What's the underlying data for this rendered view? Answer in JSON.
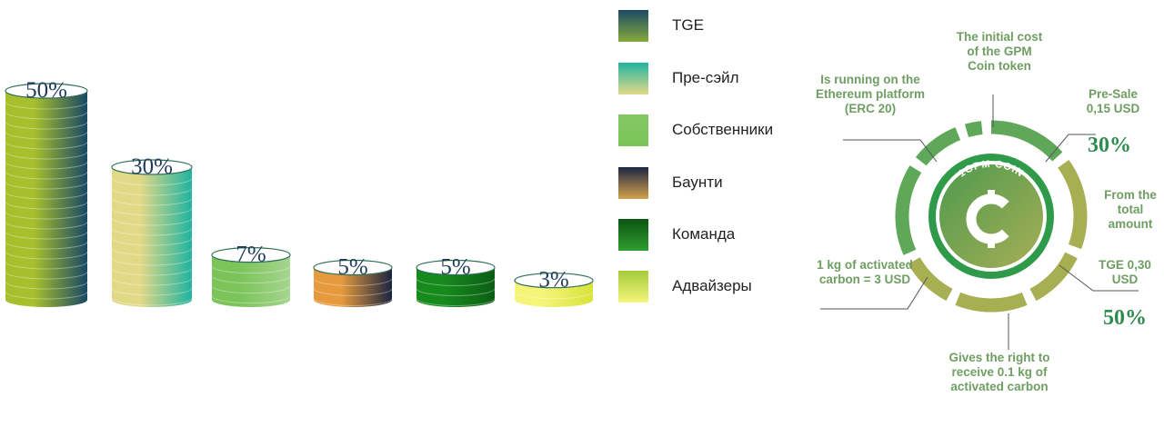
{
  "chart_data": {
    "type": "bar",
    "categories": [
      "TGE",
      "Пре-сэйл",
      "Собственники",
      "Баунти",
      "Команда",
      "Адвайзеры"
    ],
    "values": [
      50,
      30,
      7,
      5,
      5,
      3
    ],
    "labels": [
      "50%",
      "30%",
      "7%",
      "5%",
      "5%",
      "3%"
    ],
    "title": "",
    "xlabel": "",
    "ylabel": "",
    "legend": "right",
    "grid": false,
    "colors": [
      [
        "#a7bf2d",
        "#184865"
      ],
      [
        "#e2d987",
        "#1fb3a0"
      ],
      [
        "#7cc45a",
        "#a5d58e"
      ],
      [
        "#e69a3e",
        "#1a2440"
      ],
      [
        "#178a1e",
        "#0b5d14"
      ],
      [
        "#f5f57a",
        "#d8e33a"
      ]
    ]
  },
  "legend": {
    "items": [
      {
        "label": "TGE",
        "swatch_top": "#1c4a66",
        "swatch_bottom": "#86aa3a"
      },
      {
        "label": "Пре-сэйл",
        "swatch_top": "#1fb3a0",
        "swatch_bottom": "#e4d98a"
      },
      {
        "label": "Собственники",
        "swatch_top": "#84c763",
        "swatch_bottom": "#7cc45a"
      },
      {
        "label": "Баунти",
        "swatch_top": "#1b2641",
        "swatch_bottom": "#d6a24e"
      },
      {
        "label": "Команда",
        "swatch_top": "#0b5412",
        "swatch_bottom": "#2f9e2f"
      },
      {
        "label": "Адвайзеры",
        "swatch_top": "#a5cc3a",
        "swatch_bottom": "#f5f57a"
      }
    ]
  },
  "coin": {
    "center_label": "1GPM COIN",
    "symbol": "currency-c-icon",
    "colors": {
      "ring_dark": "#5fa85a",
      "ring_olive": "#a8ae52",
      "inner": "#2e9a4a",
      "text": "#6f9e62",
      "accent": "#2e8b4e"
    },
    "callouts": {
      "initial_cost": "The initial cost of the GPM Coin token",
      "ethereum": "Is running on the Ethereum platform (ERC 20)",
      "presale": "Pre-Sale 0,15 USD",
      "presale_pct": "30%",
      "total_amount": "From the total amount",
      "tge": "TGE 0,30 USD",
      "tge_pct": "50%",
      "carbon_price": "1 kg of activated carbon = 3 USD",
      "right": "Gives the right to receive 0.1 kg of activated carbon"
    }
  }
}
